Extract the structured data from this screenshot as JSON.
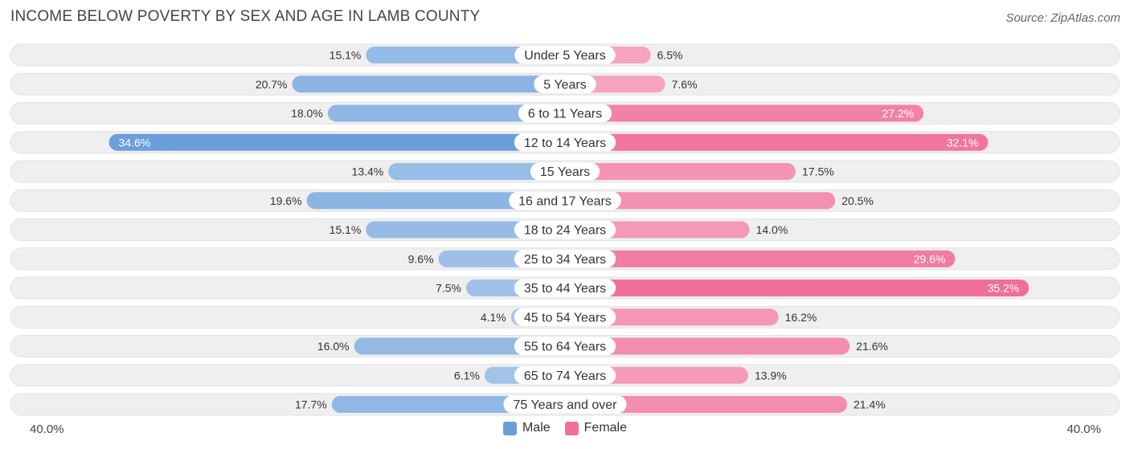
{
  "header": {
    "title": "INCOME BELOW POVERTY BY SEX AND AGE IN LAMB COUNTY",
    "source": "Source: ZipAtlas.com"
  },
  "colors": {
    "male_light": "#a7c6ea",
    "male_dark": "#6a9fdb",
    "female_light": "#f6a9c2",
    "female_dark": "#f06f98",
    "row_bg": "#efefef"
  },
  "axis": {
    "left_label": "40.0%",
    "right_label": "40.0%"
  },
  "legend": {
    "male": "Male",
    "female": "Female"
  },
  "chart_data": {
    "type": "bar",
    "orientation": "horizontal-diverging",
    "title": "INCOME BELOW POVERTY BY SEX AND AGE IN LAMB COUNTY",
    "xlim": [
      -40,
      40
    ],
    "categories": [
      "Under 5 Years",
      "5 Years",
      "6 to 11 Years",
      "12 to 14 Years",
      "15 Years",
      "16 and 17 Years",
      "18 to 24 Years",
      "25 to 34 Years",
      "35 to 44 Years",
      "45 to 54 Years",
      "55 to 64 Years",
      "65 to 74 Years",
      "75 Years and over"
    ],
    "series": [
      {
        "name": "Male",
        "values": [
          15.1,
          20.7,
          18.0,
          34.6,
          13.4,
          19.6,
          15.1,
          9.6,
          7.5,
          4.1,
          16.0,
          6.1,
          17.7
        ],
        "labels": [
          "15.1%",
          "20.7%",
          "18.0%",
          "34.6%",
          "13.4%",
          "19.6%",
          "15.1%",
          "9.6%",
          "7.5%",
          "4.1%",
          "16.0%",
          "6.1%",
          "17.7%"
        ]
      },
      {
        "name": "Female",
        "values": [
          6.5,
          7.6,
          27.2,
          32.1,
          17.5,
          20.5,
          14.0,
          29.6,
          35.2,
          16.2,
          21.6,
          13.9,
          21.4
        ],
        "labels": [
          "6.5%",
          "7.6%",
          "27.2%",
          "32.1%",
          "17.5%",
          "20.5%",
          "14.0%",
          "29.6%",
          "35.2%",
          "16.2%",
          "21.6%",
          "13.9%",
          "21.4%"
        ]
      }
    ]
  }
}
